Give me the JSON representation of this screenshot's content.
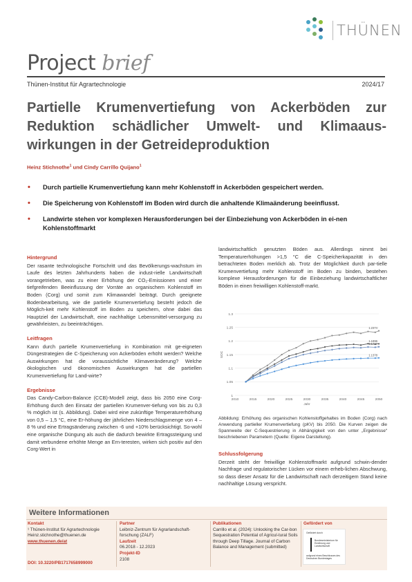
{
  "header": {
    "logo_text": "THÜNEN",
    "logo_dot_colors": [
      "#4aa3c7",
      "#3a7d5a",
      "#8fbf3a",
      "#6cc3d5",
      "#2e5b8a",
      "#7fb069"
    ],
    "title_main": "Project ",
    "title_italic": "brief",
    "institute": "Thünen-Institut für Agrartechnologie",
    "issue": "2024/17"
  },
  "headline": "Partielle Krumenvertiefung von Ackerböden zur Reduktion schädlicher Umwelt- und Klimaaus-wirkungen in der Getreideproduktion",
  "authors": {
    "author1": "Heinz Stichnothe",
    "sup1": "1",
    "connector": " und ",
    "author2": "Cindy Carrillo Quijano",
    "sup2": "1"
  },
  "bullets": [
    "Durch partielle Krumenvertiefung kann mehr Kohlenstoff in Ackerböden gespeichert werden.",
    "Die Speicherung von Kohlenstoff im Boden wird durch die anhaltende Klimaänderung beeinflusst.",
    "Landwirte stehen vor komplexen Herausforderungen bei der Einbeziehung von Ackerböden in ei-nen Kohlenstoffmarkt"
  ],
  "sections": {
    "hintergrund_h": "Hintergrund",
    "hintergrund_t": "Der rasante technologische Fortschritt und das Bevölkerungs-wachstum im Laufe des letzten Jahrhunderts haben die indust-rielle Landwirtschaft vorangetrieben, was zu einer Erhöhung der CO₂-Emissionen und einer tiefgreifenden Beeinflussung der Vorräte an organischem Kohlenstoff im Boden (Corg) und somit zum Klimawandel beiträgt. Durch geeignete Bodenbearbeitung, wie die partielle Krumenvertiefung besteht jedoch die Möglich-keit mehr Kohlenstoff im Boden zu speichern, ohne dabei das Hauptziel der Landwirtschaft, eine nachhaltige Lebensmittel-versorgung zu gewährleisten, zu beeinträchtigen.",
    "leitfragen_h": "Leitfragen",
    "leitfragen_t": "Kann durch partielle Krumenvertiefung in Kombination mit ge-eigneten Düngestrategien die C-Speicherung von Ackerböden erhöht werden? Welche Auswirkungen hat die voraussichtliche Klimaveränderung? Welche ökologischen und ökonomischen Auswirkungen hat die partiellen Krumenvertiefung für Land-wirte?",
    "ergebnisse_h": "Ergebnisse",
    "ergebnisse_t": "Das Candy-Carbon-Balance (CCB)-Modell zeigt, dass bis 2050 eine Corg-Erhöhung durch den Einsatz der partiellen Krumenver-tiefung von bis zu 0,3 % möglich ist (s. Abbildung). Dabei wird eine zukünftige Temperaturerhöhung von 0,5 – 1,5 °C, eine Er-höhung der jährlichen Niederschlagsmenge von 4 – 8 % und eine Ertragsänderung zwischen -6 und +10% berücksichtigt. So-wohl eine organische Düngung als auch die dadurch bewirkte Ertragssteigung und damit verbundene erhöhte Menge an Ern-teresten, wirken sich positiv auf den Corg-Wert in",
    "right_t": "landwirtschaftlich genutzten Böden aus. Allerdings nimmt bei Temperaturerhöhungen >1,5 °C die C-Speicherkapazität in den betrachteten Boden merklich ab. Trotz der Möglichkeit durch par-tielle Krumenvertiefung mehr Kohlenstoff im Boden zu binden, bestehen komplexe Herausforderungen für die Einbeziehung landwirtschaftlicher Böden in einen freiwilligen Kohlenstoff-markt.",
    "caption": "Abbildung: Erhöhung des organischen Kohlenstoffgehaltes im Boden (Corg) nach Anwendung partieller Krumenvertiefung (pKV) bis 2050. Die Kurven zeigen die Spannweite der C-Sequestrierung in Abhängigkeit von den unter „Ergebnisse“ beschriebenen Parametern (Quelle: Eigene Darstellung).",
    "schluss_h": "Schlussfolgerung",
    "schluss_t": "Derzeit steht der freiwillige Kohlenstoffmarkt aufgrund schwin-dender Nachfrage und regulatorischer Lücken vor einem erheb-lichen Abschwung, so dass dieser Ansatz für die Landwirtschaft nach derzeitigem Stand keine nachhaltige Lösung verspricht."
  },
  "chart_data": {
    "type": "line",
    "title": "",
    "xlabel": "Jahr",
    "ylabel": "SOC",
    "xlim": [
      2010,
      2050
    ],
    "ylim": [
      1.0,
      1.3
    ],
    "x_ticks": [
      2010,
      2015,
      2020,
      2025,
      2030,
      2035,
      2040,
      2045,
      2050
    ],
    "y_ticks": [
      1.0,
      1.05,
      1.1,
      1.15,
      1.2,
      1.25,
      1.3
    ],
    "y_tick_labels": [
      "1",
      "1.05",
      "1.1",
      "1.15",
      "1.2",
      "1.25",
      "1.3"
    ],
    "grid": true,
    "end_labels": [
      "1.2374",
      "1.1896",
      "1.1787",
      "1.1378"
    ],
    "series": [
      {
        "color": "#8a8a8a",
        "marker": "circle",
        "x": [
          2013,
          2015,
          2017,
          2019,
          2021,
          2023,
          2025,
          2027,
          2029,
          2031,
          2033,
          2035,
          2037,
          2039,
          2041,
          2043,
          2045,
          2047,
          2049,
          2050
        ],
        "values": [
          1.05,
          1.075,
          1.095,
          1.11,
          1.13,
          1.15,
          1.165,
          1.175,
          1.19,
          1.2,
          1.205,
          1.212,
          1.22,
          1.222,
          1.228,
          1.232,
          1.228,
          1.235,
          1.232,
          1.2374
        ]
      },
      {
        "color": "#555555",
        "marker": "circle",
        "x": [
          2013,
          2015,
          2017,
          2019,
          2021,
          2023,
          2025,
          2027,
          2029,
          2031,
          2033,
          2035,
          2037,
          2039,
          2041,
          2043,
          2045,
          2047,
          2049,
          2050
        ],
        "values": [
          1.05,
          1.07,
          1.085,
          1.1,
          1.115,
          1.13,
          1.145,
          1.152,
          1.16,
          1.168,
          1.172,
          1.178,
          1.182,
          1.185,
          1.186,
          1.188,
          1.185,
          1.19,
          1.188,
          1.1896
        ]
      },
      {
        "color": "#6f8fbf",
        "marker": "diamond",
        "x": [
          2013,
          2015,
          2017,
          2019,
          2021,
          2023,
          2025,
          2027,
          2029,
          2031,
          2033,
          2035,
          2037,
          2039,
          2041,
          2043,
          2045,
          2047,
          2049,
          2050
        ],
        "values": [
          1.05,
          1.068,
          1.08,
          1.095,
          1.108,
          1.122,
          1.135,
          1.142,
          1.15,
          1.155,
          1.16,
          1.165,
          1.168,
          1.172,
          1.174,
          1.176,
          1.175,
          1.178,
          1.177,
          1.1787
        ]
      },
      {
        "color": "#4a90d9",
        "marker": "circle",
        "x": [
          2013,
          2015,
          2017,
          2019,
          2021,
          2023,
          2025,
          2027,
          2029,
          2031,
          2033,
          2035,
          2037,
          2039,
          2041,
          2043,
          2045,
          2047,
          2049,
          2050
        ],
        "values": [
          1.05,
          1.062,
          1.072,
          1.08,
          1.088,
          1.096,
          1.104,
          1.11,
          1.115,
          1.12,
          1.124,
          1.127,
          1.13,
          1.132,
          1.134,
          1.135,
          1.136,
          1.137,
          1.137,
          1.1378
        ]
      }
    ]
  },
  "footer": {
    "heading": "Weitere Informationen",
    "kontakt_h": "Kontakt",
    "kontakt_1": "¹ Thünen-Institut für Agrartechnologie",
    "kontakt_2": "Heinz.stichnothe@thuenen.de",
    "kontakt_link": "www.thuenen.de/at",
    "doi": "DOI: 10.3220/PB1717658999000",
    "partner_h": "Partner",
    "partner_t": "Leibniz-Zentrum für Agrarlandschaft-forschung (ZALF)",
    "laufzeit_h": "Laufzeit",
    "laufzeit_t": "06.2018 - 12.2023",
    "projekt_h": "Projekt-ID",
    "projekt_t": "2108",
    "pub_h": "Publikationen",
    "pub_t": "Carrillo et al. (2024): Unlocking the Car-bon Sequestration Potential of Agricul-tural Soils through Deep Tillage. Journal of Carbon Balance and Management (submitted)",
    "funder_h": "Gefördert von",
    "funder_small": "Gefördert durch",
    "funder_lines": "Bundesministerium für Ernährung und Landwirtschaft",
    "funder_note": "aufgrund eines Beschlusses des Deutschen Bundestages"
  }
}
